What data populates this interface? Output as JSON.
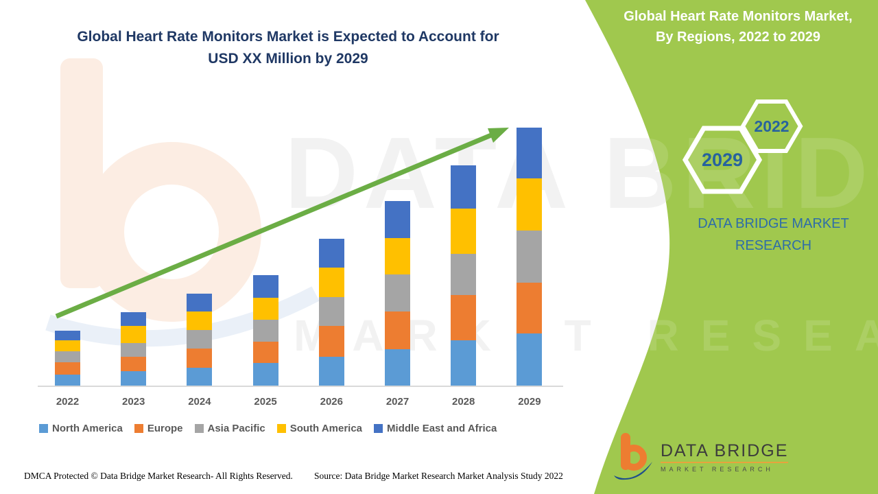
{
  "header": {
    "title_line1": "Global Heart Rate Monitors Market is Expected to Account for",
    "title_line2": "USD XX Million by 2029"
  },
  "sidebar": {
    "heading_line1": "Global Heart Rate Monitors Market,",
    "heading_line2": "By Regions, 2022 to 2029",
    "hexagon_large_label": "2029",
    "hexagon_small_label": "2022",
    "brand_line1": "DATA BRIDGE MARKET",
    "brand_line2": "RESEARCH",
    "accent_green": "#A0C84E",
    "year_text_color": "#27639E"
  },
  "watermark": {
    "line1": "DATA BRIDGE",
    "line2": "MARKET RESEARCH"
  },
  "logo": {
    "name": "DATA BRIDGE",
    "tagline": "MARKET RESEARCH"
  },
  "chart_data": {
    "type": "bar",
    "stacked": true,
    "title": "Global Heart Rate Monitors Market, By Regions, 2022 to 2029",
    "value_note": "no y-axis shown; segment values estimated from bar pixel heights (relative units)",
    "categories": [
      "2022",
      "2023",
      "2024",
      "2025",
      "2026",
      "2027",
      "2028",
      "2029"
    ],
    "series": [
      {
        "name": "North America",
        "color": "#5B9BD5",
        "values": [
          17,
          22,
          27,
          34,
          43,
          54,
          67,
          77
        ]
      },
      {
        "name": "Europe",
        "color": "#ED7D31",
        "values": [
          18,
          21,
          28,
          31,
          45,
          55,
          66,
          74
        ]
      },
      {
        "name": "Asia Pacific",
        "color": "#A5A5A5",
        "values": [
          16,
          20,
          27,
          32,
          42,
          54,
          60,
          76
        ]
      },
      {
        "name": "South America",
        "color": "#FFC000",
        "values": [
          16,
          25,
          27,
          32,
          43,
          53,
          66,
          76
        ]
      },
      {
        "name": "Middle East and Africa",
        "color": "#4472C4",
        "values": [
          14,
          20,
          26,
          33,
          42,
          54,
          63,
          74
        ]
      }
    ],
    "totals": [
      81,
      108,
      135,
      162,
      215,
      270,
      322,
      377
    ],
    "trend_arrow": true,
    "arrow_color": "#6BAD45",
    "axis_color": "#D9D9D9",
    "tick_label_color": "#595959",
    "legend_position": "bottom",
    "grid": false
  },
  "footer": {
    "dmca": "DMCA Protected © Data Bridge Market Research- All Rights Reserved.",
    "source": "Source: Data Bridge Market Research Market Analysis Study 2022"
  }
}
